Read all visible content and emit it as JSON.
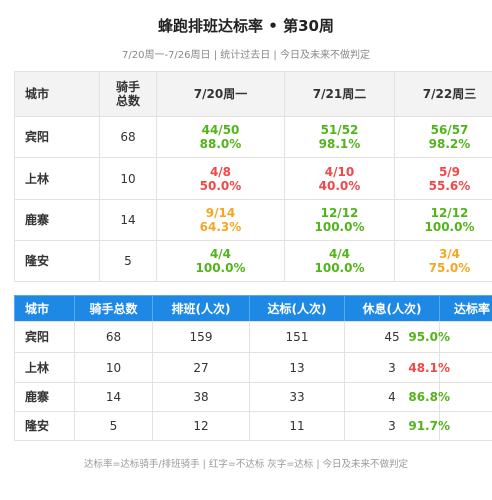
{
  "header": {
    "title": "蜂跑排班达标率 • 第30周",
    "subtitle": "7/20周一-7/26周日 | 统计过去日 | 今日及未来不做判定"
  },
  "daily_table": {
    "columns": [
      "城市",
      "骑手\n总数",
      "7/20周一",
      "7/21周二",
      "7/22周三"
    ],
    "rows": [
      {
        "city": "宾阳",
        "riders": 68,
        "days": [
          {
            "top": "44/50",
            "bottom": "88.0%",
            "color": "#52b41a"
          },
          {
            "top": "51/52",
            "bottom": "98.1%",
            "color": "#52b41a"
          },
          {
            "top": "56/57",
            "bottom": "98.2%",
            "color": "#52b41a"
          }
        ]
      },
      {
        "city": "上林",
        "riders": 10,
        "days": [
          {
            "top": "4/8",
            "bottom": "50.0%",
            "color": "#f04848"
          },
          {
            "top": "4/10",
            "bottom": "40.0%",
            "color": "#f04848"
          },
          {
            "top": "5/9",
            "bottom": "55.6%",
            "color": "#f04848"
          }
        ]
      },
      {
        "city": "鹿寨",
        "riders": 14,
        "days": [
          {
            "top": "9/14",
            "bottom": "64.3%",
            "color": "#f5a623"
          },
          {
            "top": "12/12",
            "bottom": "100.0%",
            "color": "#52b41a"
          },
          {
            "top": "12/12",
            "bottom": "100.0%",
            "color": "#52b41a"
          }
        ]
      },
      {
        "city": "隆安",
        "riders": 5,
        "days": [
          {
            "top": "4/4",
            "bottom": "100.0%",
            "color": "#52b41a"
          },
          {
            "top": "4/4",
            "bottom": "100.0%",
            "color": "#52b41a"
          },
          {
            "top": "3/4",
            "bottom": "75.0%",
            "color": "#f5a623"
          }
        ]
      }
    ]
  },
  "summary_table": {
    "columns": [
      "城市",
      "骑手总数",
      "排班(人次)",
      "达标(人次)",
      "休息(人次)",
      "达标率"
    ],
    "rows": [
      {
        "cells": [
          "宾阳",
          68,
          159,
          151,
          45,
          "95.0%"
        ],
        "color": "#52b41a"
      },
      {
        "cells": [
          "上林",
          10,
          27,
          13,
          3,
          "48.1%"
        ],
        "color": "#f04848"
      },
      {
        "cells": [
          "鹿寨",
          14,
          38,
          33,
          4,
          "86.8%"
        ],
        "color": "#52b41a"
      },
      {
        "cells": [
          "隆安",
          5,
          12,
          11,
          3,
          "91.7%"
        ],
        "color": "#52b41a"
      }
    ]
  },
  "footer": "达标率=达标骑手/排班骑手 | 红字=不达标 灰字=达标 | 今日及未来不做判定"
}
